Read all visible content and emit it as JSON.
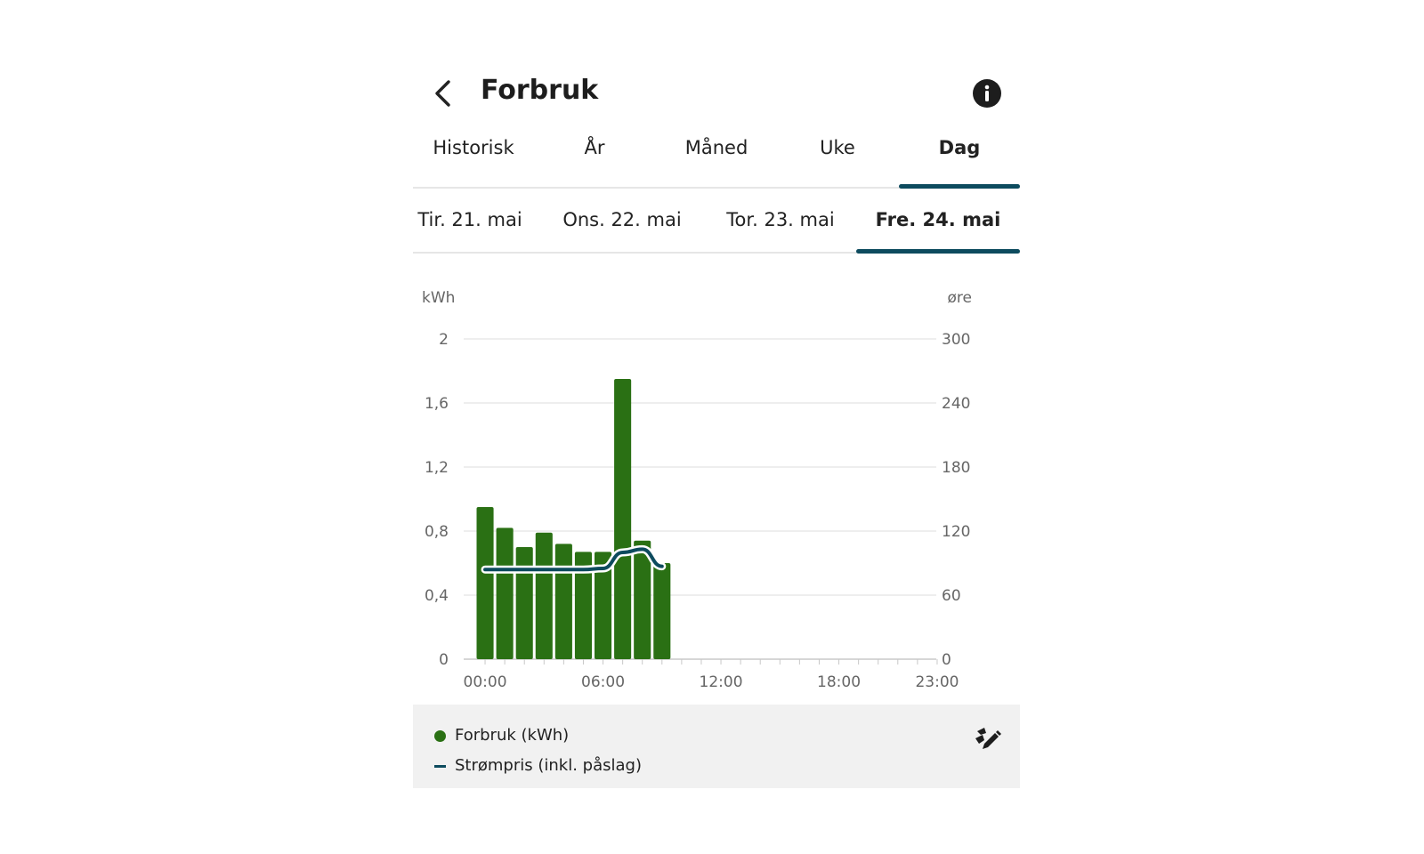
{
  "header": {
    "title": "Forbruk",
    "back_icon": "chevron-left-icon",
    "info_icon": "info-icon"
  },
  "tabs": [
    {
      "label": "Historisk",
      "active": false
    },
    {
      "label": "År",
      "active": false
    },
    {
      "label": "Måned",
      "active": false
    },
    {
      "label": "Uke",
      "active": false
    },
    {
      "label": "Dag",
      "active": true
    }
  ],
  "days": [
    {
      "label": "Tir. 21. mai",
      "active": false
    },
    {
      "label": "Ons. 22. mai",
      "active": false
    },
    {
      "label": "Tor. 23. mai",
      "active": false
    },
    {
      "label": "Fre. 24. mai",
      "active": true
    }
  ],
  "colors": {
    "accent": "#0d4b5e",
    "bar": "#2a7014",
    "grid": "#dddddd",
    "legend_bg": "#f1f1f1"
  },
  "chart_data": {
    "type": "bar",
    "left_axis": {
      "label": "kWh",
      "ticks": [
        "0",
        "0,4",
        "0,8",
        "1,2",
        "1,6",
        "2"
      ],
      "range": [
        0,
        2
      ]
    },
    "right_axis": {
      "label": "øre",
      "ticks": [
        "0",
        "60",
        "120",
        "180",
        "240",
        "300"
      ],
      "range": [
        0,
        300
      ]
    },
    "x_ticks": [
      "00:00",
      "06:00",
      "12:00",
      "18:00",
      "23:00"
    ],
    "hours": 24,
    "series": [
      {
        "name": "Forbruk (kWh)",
        "type": "bar",
        "axis": "left",
        "values": [
          0.95,
          0.82,
          0.7,
          0.79,
          0.72,
          0.67,
          0.67,
          1.75,
          0.74,
          0.6
        ]
      },
      {
        "name": "Strømpris (inkl. påslag)",
        "type": "line",
        "axis": "right",
        "values": [
          84,
          84,
          84,
          84,
          84,
          84,
          85,
          100,
          103,
          87
        ]
      }
    ],
    "grid": true
  },
  "legend": {
    "items": [
      {
        "label": "Forbruk (kWh)",
        "marker": "dot"
      },
      {
        "label": "Strømpris (inkl. påslag)",
        "marker": "dash"
      }
    ],
    "settings_icon": "edit-chart-icon"
  }
}
